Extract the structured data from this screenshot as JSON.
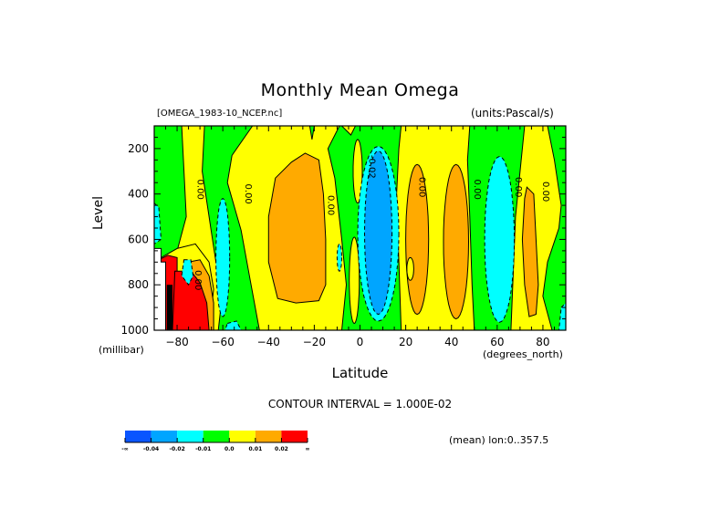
{
  "chart_data": {
    "type": "heatmap",
    "subtype": "filled-contour",
    "title": "Monthly Mean Omega",
    "file_label": "[OMEGA_1983-10_NCEP.nc]",
    "units_label": "(units:Pascal/s)",
    "xlabel": "Latitude",
    "x_units": "(degrees_north)",
    "ylabel": "Level",
    "y_units": "(millibar)",
    "xlim": [
      -90,
      90
    ],
    "ylim": [
      100,
      1000
    ],
    "y_inverted": true,
    "x_ticks": [
      -80,
      -60,
      -40,
      -20,
      0,
      20,
      40,
      60,
      80
    ],
    "y_ticks": [
      200,
      400,
      600,
      800,
      1000
    ],
    "x_ticks_labels": [
      "-80",
      "-60",
      "-40",
      "-20",
      "0",
      "20",
      "40",
      "60",
      "80"
    ],
    "y_ticks_labels": [
      "200",
      "400",
      "600",
      "800",
      "1000"
    ],
    "contour_interval_text": "CONTOUR INTERVAL = 1.000E-02",
    "contour_interval": 0.01,
    "mean_note": "(mean) lon:0..357.5",
    "contour_labels": [
      {
        "text": "0.00",
        "lat": -71,
        "level": 380
      },
      {
        "text": "0.00",
        "lat": -50,
        "level": 400
      },
      {
        "text": "0.00",
        "lat": -14,
        "level": 450
      },
      {
        "text": "-0.02",
        "lat": 4,
        "level": 280
      },
      {
        "text": "0.00",
        "lat": 26,
        "level": 370
      },
      {
        "text": "0.00",
        "lat": 50,
        "level": 380
      },
      {
        "text": "0.00",
        "lat": 68,
        "level": 370
      },
      {
        "text": "0.00",
        "lat": 80,
        "level": 390
      },
      {
        "text": "0.00",
        "lat": -72,
        "level": 780
      }
    ],
    "colorbar": {
      "bins": [
        {
          "label_from": "-∞",
          "to": -0.04,
          "color": "#0a55ff"
        },
        {
          "from": -0.04,
          "to": -0.02,
          "color": "#00a5ff"
        },
        {
          "from": -0.02,
          "to": -0.01,
          "color": "#00ffff"
        },
        {
          "from": -0.01,
          "to": 0.0,
          "color": "#00ff00"
        },
        {
          "from": 0.0,
          "to": 0.01,
          "color": "#ffff00"
        },
        {
          "from": 0.01,
          "to": 0.02,
          "color": "#ffaa00"
        },
        {
          "from": 0.02,
          "to": "∞",
          "color": "#ff0000"
        }
      ],
      "tick_labels": [
        "-∞",
        "-0.04",
        "-0.02",
        "-0.01",
        "0.0",
        "0.01",
        "0.02",
        "∞"
      ]
    },
    "regions": [
      {
        "value_class": "orange",
        "desc": "broad positive cell",
        "lat_range": [
          -38,
          -18
        ],
        "level_range": [
          230,
          860
        ]
      },
      {
        "value_class": "blue",
        "desc": "strong negative core",
        "lat_range": [
          2,
          14
        ],
        "level_range": [
          210,
          920
        ]
      },
      {
        "value_class": "cyan",
        "desc": "negative band",
        "lat_range": [
          56,
          66
        ],
        "level_range": [
          270,
          1000
        ]
      },
      {
        "value_class": "orange",
        "desc": "positive cell",
        "lat_range": [
          20,
          30
        ],
        "level_range": [
          250,
          940
        ]
      },
      {
        "value_class": "orange",
        "desc": "positive cell",
        "lat_range": [
          37,
          47
        ],
        "level_range": [
          270,
          950
        ]
      },
      {
        "value_class": "orange",
        "desc": "positive cell",
        "lat_range": [
          72,
          78
        ],
        "level_range": [
          370,
          930
        ]
      },
      {
        "value_class": "red",
        "desc": "strong positive near Antarctic surface",
        "lat_range": [
          -85,
          -68
        ],
        "level_range": [
          700,
          1000
        ]
      },
      {
        "value_class": "missing",
        "desc": "below ground (white)",
        "lat_range": [
          -90,
          -84
        ],
        "level_range": [
          640,
          1000
        ]
      }
    ]
  },
  "colors": {
    "blue": "#0a55ff",
    "lightblue": "#00a5ff",
    "cyan": "#00ffff",
    "green": "#00ff00",
    "yellow": "#ffff00",
    "orange": "#ffaa00",
    "red": "#ff0000"
  }
}
